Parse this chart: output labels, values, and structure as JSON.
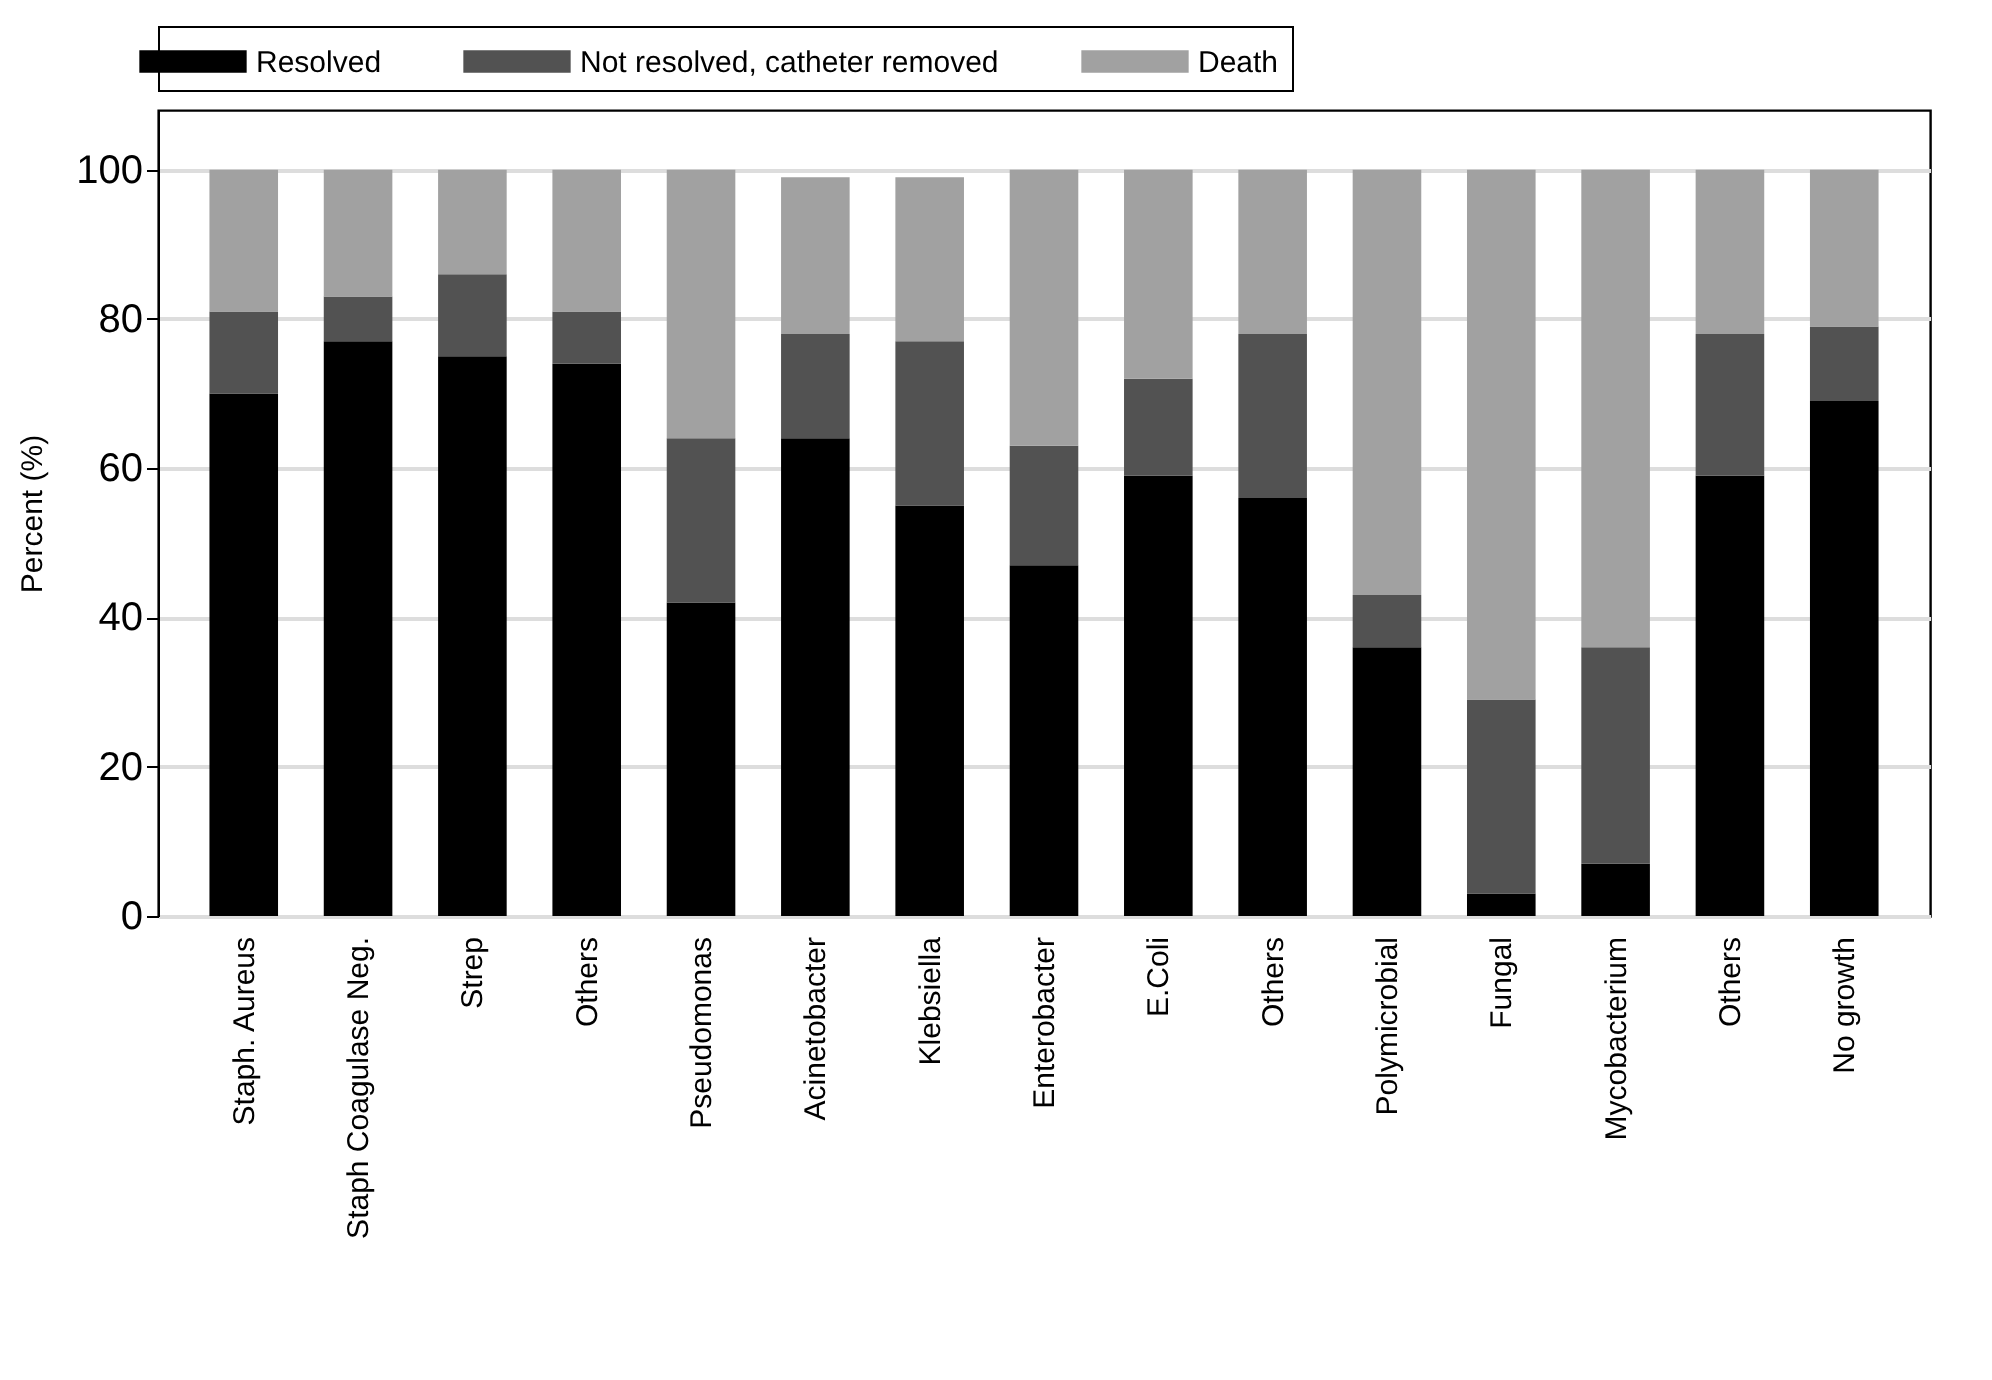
{
  "chart_data": {
    "type": "bar",
    "stacked": true,
    "ylabel": "Percent (%)",
    "categories": [
      "Staph. Aureus",
      "Staph Coagulase Neg.",
      "Strep",
      "Others",
      "Pseudomonas",
      "Acinetobacter",
      "Klebsiella",
      "Enterobacter",
      "E.Coli",
      "Others",
      "Polymicrobial",
      "Fungal",
      "Mycobacterium",
      "Others",
      "No growth"
    ],
    "series": [
      {
        "name": "Resolved",
        "color": "#000000",
        "values": [
          70,
          77,
          75,
          74,
          42,
          64,
          55,
          47,
          59,
          56,
          36,
          3,
          7,
          59,
          69
        ]
      },
      {
        "name": "Not resolved, catheter removed",
        "color": "#525252",
        "values": [
          11,
          6,
          11,
          7,
          22,
          14,
          22,
          16,
          13,
          22,
          7,
          26,
          29,
          19,
          10
        ]
      },
      {
        "name": "Death",
        "color": "#a1a1a1",
        "values": [
          19,
          17,
          14,
          19,
          36,
          21,
          22,
          37,
          28,
          22,
          57,
          71,
          64,
          22,
          21
        ]
      }
    ],
    "ylim": [
      0,
      108
    ],
    "yticks": [
      0,
      20,
      40,
      60,
      80,
      100
    ],
    "grid": "y",
    "legend": "top"
  }
}
